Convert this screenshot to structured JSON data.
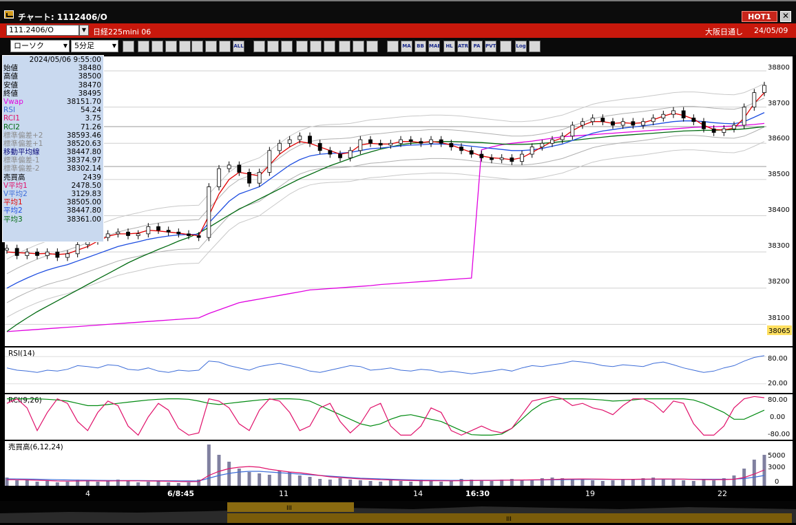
{
  "window": {
    "title": "チャート: 1112406/O",
    "hot_label": "HOT1",
    "close_label": "✕"
  },
  "symbol_bar": {
    "code": "111.2406/O",
    "name": "日経225mini 06",
    "market": "大阪日通し",
    "date": "24/05/09"
  },
  "toolbar": {
    "chart_type": "ローソク",
    "interval": "5分足",
    "icons": [
      "zoom-icon",
      "crosshair-icon",
      "down-arrow-icon",
      "chart-icon",
      "tools-icon",
      "stop-icon",
      "candle-icon",
      "bar-icon",
      "all-icon",
      "draw-line-icon",
      "draw-tool-icon",
      "cursor-icon",
      "undo-icon",
      "copy-icon",
      "delete-icon",
      "settings-icon",
      "wrench-icon",
      "color-icon",
      "indicator-icon",
      "vwap-icon",
      "bollinger-icon",
      "envelope-icon",
      "hl-icon",
      "atr-icon",
      "para-icon",
      "pivot-icon",
      "window-icon",
      "log-icon",
      "export-icon"
    ],
    "icon_labels": [
      "",
      "",
      "",
      "",
      "",
      "",
      "",
      "",
      "ALL",
      "",
      "",
      "",
      "",
      "",
      "",
      "",
      "",
      "",
      "",
      "MA",
      "BB",
      "MAE",
      "HL",
      "ATR",
      "PA RA",
      "PVT",
      "",
      "Log",
      ""
    ]
  },
  "info_panel": {
    "datetime": "2024/05/06  9:55:00",
    "rows": [
      {
        "label": "始値",
        "value": "38480",
        "color": "#000000"
      },
      {
        "label": "高値",
        "value": "38500",
        "color": "#000000"
      },
      {
        "label": "安値",
        "value": "38470",
        "color": "#000000"
      },
      {
        "label": "終値",
        "value": "38495",
        "color": "#000000"
      },
      {
        "label": "Vwap",
        "value": "38151.70",
        "color": "#e000e0"
      },
      {
        "label": "RSI",
        "value": "54.24",
        "color": "#3c6cd8"
      },
      {
        "label": "RCI1",
        "value": "3.75",
        "color": "#e0106a"
      },
      {
        "label": "RCI2",
        "value": "71.26",
        "color": "#006a10"
      },
      {
        "label": "標準偏差+2",
        "value": "38593.46",
        "color": "#8c8c8c"
      },
      {
        "label": "標準偏差+1",
        "value": "38520.63",
        "color": "#8c8c8c"
      },
      {
        "label": "移動平均線",
        "value": "38447.80",
        "color": "#0a0a7a"
      },
      {
        "label": "標準偏差-1",
        "value": "38374.97",
        "color": "#8c8c8c"
      },
      {
        "label": "標準偏差-2",
        "value": "38302.14",
        "color": "#8c8c8c"
      },
      {
        "label": "売買高",
        "value": "2439",
        "color": "#000000"
      },
      {
        "label": "V平均1",
        "value": "2478.50",
        "color": "#e0106a"
      },
      {
        "label": "V平均2",
        "value": "3129.83",
        "color": "#3c6cd8"
      },
      {
        "label": "平均1",
        "value": "38505.00",
        "color": "#e00000"
      },
      {
        "label": "平均2",
        "value": "38447.80",
        "color": "#1c4ce0"
      },
      {
        "label": "平均3",
        "value": "38361.00",
        "color": "#006a10"
      }
    ]
  },
  "price_axis": {
    "ticks": [
      "38800",
      "38700",
      "38600",
      "38500",
      "38400",
      "38300",
      "38200",
      "38100"
    ],
    "current": "38065"
  },
  "rsi_panel": {
    "label": "RSI(14)",
    "ticks": [
      "80.00",
      "20.00"
    ]
  },
  "rci_panel": {
    "label": "RCI(9,26)",
    "ticks": [
      "80.00",
      "0.00",
      "-80.00"
    ]
  },
  "volume_panel": {
    "label": "売買高(6,12,24)",
    "ticks": [
      "5000",
      "3000",
      "0"
    ]
  },
  "time_axis": [
    "4",
    "6/8:45",
    "11",
    "14",
    "16:30",
    "19",
    "22"
  ],
  "colors": {
    "bg": "#000000",
    "panel_bg": "#ffffff",
    "grid": "#cfcfcf",
    "ma1": "#e00000",
    "ma2": "#1c4ce0",
    "ma3": "#006a10",
    "vwap": "#e000e0",
    "rsi": "#3c6cd8",
    "rci1": "#e0106a",
    "rci2": "#008a10",
    "volume": "#8080a0"
  },
  "chart_data": [
    {
      "type": "candlestick",
      "panel": "price",
      "ylim": [
        38040,
        38840
      ],
      "close": [
        38310,
        38290,
        38300,
        38290,
        38300,
        38285,
        38295,
        38320,
        38330,
        38340,
        38350,
        38355,
        38345,
        38350,
        38370,
        38360,
        38355,
        38350,
        38345,
        38340,
        38480,
        38530,
        38540,
        38520,
        38490,
        38520,
        38580,
        38600,
        38610,
        38620,
        38600,
        38580,
        38570,
        38560,
        38580,
        38610,
        38600,
        38595,
        38600,
        38610,
        38605,
        38600,
        38610,
        38600,
        38590,
        38580,
        38570,
        38560,
        38555,
        38560,
        38550,
        38570,
        38590,
        38600,
        38610,
        38620,
        38650,
        38660,
        38670,
        38660,
        38650,
        38660,
        38650,
        38660,
        38670,
        38680,
        38690,
        38670,
        38660,
        38640,
        38630,
        38640,
        38650,
        38700,
        38740,
        38760
      ],
      "ma1": [
        38300,
        38298,
        38297,
        38295,
        38296,
        38293,
        38295,
        38305,
        38315,
        38330,
        38343,
        38350,
        38350,
        38352,
        38360,
        38358,
        38355,
        38352,
        38348,
        38345,
        38400,
        38460,
        38500,
        38520,
        38515,
        38510,
        38540,
        38570,
        38590,
        38605,
        38600,
        38590,
        38580,
        38570,
        38575,
        38595,
        38600,
        38598,
        38598,
        38605,
        38605,
        38602,
        38605,
        38602,
        38595,
        38585,
        38575,
        38565,
        38560,
        38558,
        38555,
        38560,
        38575,
        38590,
        38605,
        38615,
        38635,
        38650,
        38660,
        38660,
        38655,
        38657,
        38655,
        38657,
        38665,
        38675,
        38683,
        38677,
        38667,
        38650,
        38638,
        38637,
        38642,
        38670,
        38710,
        38740
      ],
      "ma2": [
        38200,
        38215,
        38228,
        38240,
        38250,
        38258,
        38265,
        38275,
        38285,
        38295,
        38305,
        38315,
        38322,
        38328,
        38335,
        38340,
        38344,
        38347,
        38348,
        38349,
        38380,
        38410,
        38440,
        38460,
        38470,
        38480,
        38500,
        38520,
        38540,
        38555,
        38565,
        38570,
        38572,
        38573,
        38575,
        38580,
        38585,
        38587,
        38590,
        38593,
        38595,
        38596,
        38598,
        38598,
        38597,
        38595,
        38592,
        38589,
        38586,
        38583,
        38580,
        38580,
        38582,
        38586,
        38592,
        38598,
        38608,
        38618,
        38628,
        38634,
        38638,
        38642,
        38645,
        38648,
        38652,
        38656,
        38660,
        38662,
        38662,
        38660,
        38657,
        38655,
        38654,
        38660,
        38672,
        38685
      ],
      "ma3": [
        38080,
        38100,
        38118,
        38135,
        38150,
        38165,
        38180,
        38195,
        38210,
        38225,
        38240,
        38255,
        38270,
        38283,
        38295,
        38307,
        38318,
        38330,
        38340,
        38352,
        38368,
        38385,
        38402,
        38418,
        38432,
        38446,
        38460,
        38474,
        38488,
        38502,
        38514,
        38526,
        38538,
        38548,
        38558,
        38568,
        38576,
        38584,
        38590,
        38596,
        38600,
        38602,
        38604,
        38605,
        38605,
        38604,
        38603,
        38602,
        38600,
        38598,
        38597,
        38597,
        38598,
        38600,
        38602,
        38605,
        38608,
        38611,
        38614,
        38617,
        38620,
        38622,
        38624,
        38626,
        38628,
        38630,
        38632,
        38634,
        38635,
        38636,
        38636,
        38637,
        38638,
        38640,
        38643,
        38646
      ],
      "vwap": [
        38080,
        38082,
        38084,
        38086,
        38088,
        38090,
        38092,
        38094,
        38096,
        38098,
        38100,
        38102,
        38104,
        38106,
        38108,
        38110,
        38112,
        38114,
        38116,
        38118,
        38130,
        38140,
        38150,
        38160,
        38165,
        38170,
        38175,
        38180,
        38185,
        38190,
        38195,
        38197,
        38199,
        38201,
        38203,
        38205,
        38207,
        38210,
        38212,
        38214,
        38216,
        38218,
        38220,
        38222,
        38224,
        38226,
        38228,
        38582,
        38590,
        38596,
        38600,
        38603,
        38606,
        38610,
        38614,
        38618,
        38620,
        38622,
        38624,
        38626,
        38628,
        38630,
        38632,
        38634,
        38636,
        38638,
        38640,
        38642,
        38644,
        38645,
        38646,
        38647,
        38648,
        38650,
        38652,
        38655
      ]
    },
    {
      "type": "line",
      "panel": "rsi",
      "ylim": [
        0,
        100
      ],
      "series": [
        {
          "name": "RSI",
          "values": [
            55,
            50,
            48,
            45,
            50,
            48,
            52,
            60,
            58,
            55,
            62,
            60,
            52,
            50,
            55,
            48,
            45,
            50,
            48,
            50,
            70,
            68,
            60,
            55,
            50,
            58,
            62,
            65,
            60,
            55,
            48,
            45,
            50,
            55,
            60,
            58,
            50,
            52,
            55,
            50,
            48,
            52,
            50,
            45,
            48,
            45,
            42,
            45,
            48,
            52,
            48,
            55,
            60,
            58,
            62,
            65,
            70,
            68,
            65,
            60,
            58,
            62,
            60,
            58,
            65,
            68,
            62,
            55,
            50,
            45,
            48,
            55,
            60,
            70,
            78,
            82
          ]
        }
      ]
    },
    {
      "type": "line",
      "panel": "rci",
      "ylim": [
        -100,
        100
      ],
      "series": [
        {
          "name": "RCI1",
          "values": [
            60,
            80,
            40,
            -60,
            20,
            80,
            60,
            -20,
            -60,
            20,
            70,
            50,
            -40,
            -80,
            0,
            60,
            30,
            -50,
            -80,
            -70,
            80,
            70,
            40,
            -30,
            -60,
            30,
            80,
            70,
            20,
            -60,
            -40,
            40,
            60,
            -20,
            -70,
            -30,
            40,
            60,
            -40,
            -80,
            -80,
            -40,
            40,
            20,
            -60,
            -80,
            -60,
            -40,
            -60,
            -70,
            -50,
            10,
            70,
            80,
            90,
            80,
            50,
            60,
            40,
            30,
            10,
            50,
            80,
            80,
            60,
            20,
            70,
            60,
            -30,
            -80,
            -80,
            -40,
            40,
            80,
            90,
            85
          ]
        },
        {
          "name": "RCI2",
          "values": [
            80,
            80,
            80,
            80,
            78,
            75,
            70,
            60,
            50,
            50,
            55,
            60,
            65,
            70,
            75,
            78,
            80,
            80,
            78,
            70,
            60,
            55,
            60,
            65,
            70,
            75,
            78,
            80,
            80,
            78,
            70,
            50,
            30,
            10,
            -10,
            -30,
            -40,
            -30,
            -10,
            5,
            10,
            0,
            -10,
            -20,
            -40,
            -60,
            -78,
            -80,
            -80,
            -75,
            -50,
            -10,
            30,
            60,
            75,
            80,
            80,
            80,
            78,
            75,
            70,
            72,
            75,
            80,
            80,
            80,
            80,
            80,
            75,
            60,
            40,
            20,
            -10,
            -10,
            10,
            30
          ]
        }
      ]
    },
    {
      "type": "bar",
      "panel": "volume",
      "ylim": [
        0,
        6500
      ],
      "values": [
        1200,
        800,
        900,
        600,
        700,
        500,
        600,
        900,
        800,
        600,
        700,
        900,
        800,
        500,
        600,
        700,
        500,
        400,
        500,
        900,
        6000,
        4500,
        3500,
        2500,
        2000,
        1800,
        1600,
        2200,
        2000,
        1500,
        1300,
        1000,
        900,
        1100,
        900,
        800,
        700,
        600,
        800,
        700,
        600,
        900,
        800,
        600,
        700,
        1000,
        900,
        800,
        700,
        900,
        1000,
        800,
        900,
        1100,
        1200,
        1100,
        1000,
        900,
        800,
        700,
        800,
        900,
        1000,
        1100,
        1200,
        1000,
        900,
        800,
        700,
        900,
        800,
        1100,
        1500,
        2500,
        3800,
        4500
      ],
      "series": [
        {
          "name": "V平均1",
          "values": [
            900,
            880,
            860,
            800,
            760,
            700,
            680,
            700,
            720,
            710,
            700,
            720,
            740,
            720,
            700,
            690,
            660,
            620,
            600,
            620,
            1500,
            2100,
            2500,
            2700,
            2800,
            2700,
            2400,
            2200,
            2000,
            1900,
            1700,
            1500,
            1300,
            1200,
            1100,
            1000,
            950,
            880,
            850,
            800,
            760,
            740,
            740,
            730,
            720,
            740,
            760,
            780,
            780,
            800,
            820,
            840,
            860,
            880,
            920,
            960,
            980,
            990,
            980,
            960,
            940,
            930,
            940,
            960,
            980,
            990,
            980,
            960,
            920,
            900,
            880,
            900,
            950,
            1200,
            1700,
            2300
          ]
        },
        {
          "name": "V平均2",
          "values": [
            1000,
            990,
            980,
            950,
            920,
            880,
            850,
            830,
            810,
            790,
            780,
            770,
            770,
            760,
            750,
            740,
            730,
            720,
            710,
            700,
            1100,
            1500,
            1800,
            2000,
            2100,
            2100,
            2000,
            1900,
            1800,
            1700,
            1600,
            1500,
            1400,
            1300,
            1200,
            1100,
            1050,
            1000,
            950,
            900,
            860,
            830,
            810,
            800,
            790,
            790,
            790,
            800,
            800,
            810,
            820,
            830,
            840,
            850,
            870,
            890,
            910,
            920,
            930,
            930,
            930,
            930,
            935,
            940,
            950,
            955,
            960,
            960,
            955,
            950,
            945,
            950,
            970,
            1050,
            1250,
            1500
          ]
        }
      ]
    }
  ]
}
